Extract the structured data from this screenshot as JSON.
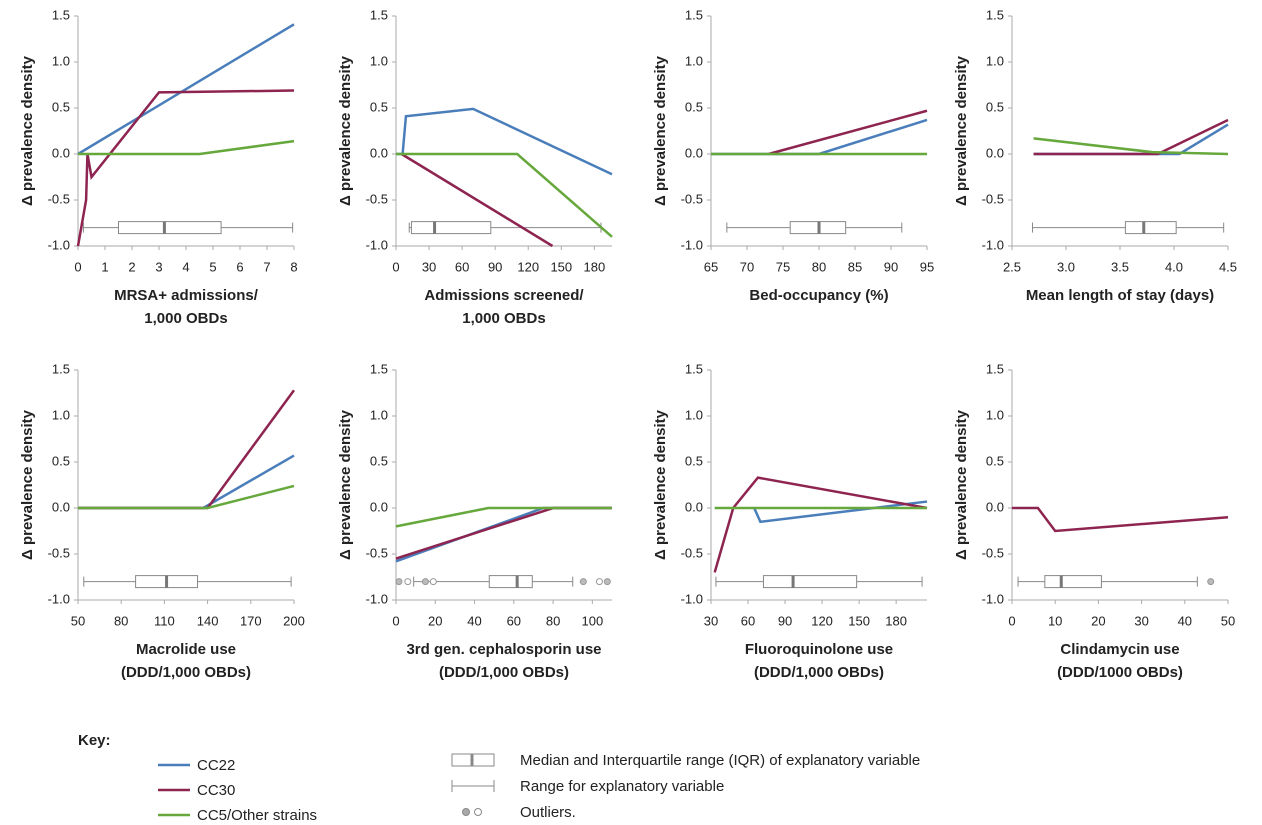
{
  "chart_data": [
    {
      "type": "line",
      "ylabel": "Δ prevalence density",
      "xlabel": [
        "MRSA+ admissions/",
        "1,000 OBDs"
      ],
      "xlim": [
        0,
        8
      ],
      "xticks": [
        0,
        1,
        2,
        3,
        4,
        5,
        6,
        7,
        8
      ],
      "ylim": [
        -1,
        1.5
      ],
      "yticks": [
        {
          "value": -1,
          "label": "-1.0"
        },
        -0.5,
        {
          "value": 0,
          "label": "0.0"
        },
        0.5,
        {
          "value": 1,
          "label": "1.0"
        },
        1.5
      ],
      "series": [
        {
          "name": "CC22",
          "color": "#4a7ebb",
          "x": [
            0,
            8
          ],
          "values": [
            0,
            1.41
          ]
        },
        {
          "name": "CC30",
          "color": "#8e2450",
          "x": [
            0,
            0.3,
            0.35,
            0.5,
            3,
            8
          ],
          "values": [
            -1,
            -0.5,
            0,
            -0.25,
            0.67,
            0.69
          ]
        },
        {
          "name": "CC5/Other strains",
          "color": "#66a83c",
          "x": [
            0,
            4.5,
            8
          ],
          "values": [
            0,
            0,
            0.14
          ]
        }
      ],
      "box": {
        "min": 0.2,
        "q1": 1.5,
        "median": 3.2,
        "q3": 5.3,
        "max": 7.95,
        "outliers": []
      }
    },
    {
      "type": "line",
      "ylabel": "Δ prevalence density",
      "xlabel": [
        "Admissions screened/",
        "1,000 OBDs"
      ],
      "xlim": [
        0,
        196
      ],
      "xticks": [
        0,
        30,
        60,
        90,
        120,
        150,
        180
      ],
      "ylim": [
        -1,
        1.5
      ],
      "yticks": [
        {
          "value": -1,
          "label": "-1.0"
        },
        -0.5,
        {
          "value": 0,
          "label": "0.0"
        },
        0.5,
        {
          "value": 1,
          "label": "1.0"
        },
        1.5
      ],
      "series": [
        {
          "name": "CC22",
          "color": "#4a7ebb",
          "x": [
            0,
            6,
            9,
            70,
            196
          ],
          "values": [
            0,
            0,
            0.41,
            0.49,
            -0.22
          ]
        },
        {
          "name": "CC30",
          "color": "#8e2450",
          "x": [
            5,
            142
          ],
          "values": [
            0,
            -1
          ]
        },
        {
          "name": "CC5/Other strains",
          "color": "#66a83c",
          "x": [
            0,
            110,
            196
          ],
          "values": [
            0,
            0,
            -0.9
          ]
        }
      ],
      "box": {
        "min": 12,
        "q1": 14,
        "median": 35,
        "q3": 86,
        "max": 186,
        "outliers": []
      }
    },
    {
      "type": "line",
      "ylabel": "Δ prevalence density",
      "xlabel": [
        "Bed-occupancy (%)"
      ],
      "xlim": [
        65,
        95
      ],
      "xticks": [
        65,
        70,
        75,
        80,
        85,
        90,
        95
      ],
      "ylim": [
        -1,
        1.5
      ],
      "yticks": [
        {
          "value": -1,
          "label": "-1.0"
        },
        -0.5,
        {
          "value": 0,
          "label": "0.0"
        },
        0.5,
        {
          "value": 1,
          "label": "1.0"
        },
        1.5
      ],
      "series": [
        {
          "name": "CC22",
          "color": "#4a7ebb",
          "x": [
            65,
            80,
            95
          ],
          "values": [
            0,
            0,
            0.37
          ]
        },
        {
          "name": "CC30",
          "color": "#8e2450",
          "x": [
            73,
            95
          ],
          "values": [
            0,
            0.47
          ]
        },
        {
          "name": "CC5/Other strains",
          "color": "#66a83c",
          "x": [
            65,
            95
          ],
          "values": [
            0,
            0
          ]
        }
      ],
      "box": {
        "min": 67.2,
        "q1": 76,
        "median": 80,
        "q3": 83.7,
        "max": 91.5,
        "outliers": []
      }
    },
    {
      "type": "line",
      "ylabel": "Δ prevalence density",
      "xlabel": [
        "Mean length of stay (days)"
      ],
      "xlim": [
        2.5,
        4.5
      ],
      "xticks": [
        2.5,
        {
          "value": 3,
          "label": "3.0"
        },
        3.5,
        {
          "value": 4,
          "label": "4.0"
        },
        4.5
      ],
      "ylim": [
        -1,
        1.5
      ],
      "yticks": [
        {
          "value": -1,
          "label": "-1.0"
        },
        -0.5,
        {
          "value": 0,
          "label": "0.0"
        },
        0.5,
        {
          "value": 1,
          "label": "1.0"
        },
        1.5
      ],
      "series": [
        {
          "name": "CC22",
          "color": "#4a7ebb",
          "x": [
            2.7,
            4.05,
            4.5
          ],
          "values": [
            0,
            0,
            0.32
          ]
        },
        {
          "name": "CC30",
          "color": "#8e2450",
          "x": [
            2.7,
            3.85,
            4.5
          ],
          "values": [
            0,
            0,
            0.37
          ]
        },
        {
          "name": "CC5/Other strains",
          "color": "#66a83c",
          "x": [
            2.7,
            3.8,
            4.5
          ],
          "values": [
            0.17,
            0.02,
            0
          ]
        }
      ],
      "box": {
        "min": 2.69,
        "q1": 3.55,
        "median": 3.72,
        "q3": 4.02,
        "max": 4.46,
        "outliers": []
      }
    },
    {
      "type": "line",
      "ylabel": "Δ prevalence density",
      "xlabel": [
        "Macrolide use",
        "(DDD/1,000 OBDs)"
      ],
      "xlim": [
        50,
        200
      ],
      "xticks": [
        50,
        80,
        110,
        140,
        170,
        200
      ],
      "ylim": [
        -1,
        1.5
      ],
      "yticks": [
        {
          "value": -1,
          "label": "-1.0"
        },
        -0.5,
        {
          "value": 0,
          "label": "0.0"
        },
        0.5,
        {
          "value": 1,
          "label": "1.0"
        },
        1.5
      ],
      "series": [
        {
          "name": "CC22",
          "color": "#4a7ebb",
          "x": [
            50,
            137,
            200
          ],
          "values": [
            0,
            0,
            0.57
          ]
        },
        {
          "name": "CC30",
          "color": "#8e2450",
          "x": [
            50,
            140,
            200
          ],
          "values": [
            0,
            0,
            1.28
          ]
        },
        {
          "name": "CC5/Other strains",
          "color": "#66a83c",
          "x": [
            50,
            140,
            200
          ],
          "values": [
            0,
            0,
            0.24
          ]
        }
      ],
      "box": {
        "min": 54,
        "q1": 90,
        "median": 111.5,
        "q3": 133,
        "max": 198,
        "outliers": []
      }
    },
    {
      "type": "line",
      "ylabel": "Δ prevalence density",
      "xlabel": [
        "3rd gen. cephalosporin use",
        "(DDD/1,000 OBDs)"
      ],
      "xlim": [
        0,
        110
      ],
      "xticks": [
        0,
        20,
        40,
        60,
        80,
        100
      ],
      "ylim": [
        -1,
        1.5
      ],
      "yticks": [
        {
          "value": -1,
          "label": "-1.0"
        },
        -0.5,
        {
          "value": 0,
          "label": "0.0"
        },
        0.5,
        {
          "value": 1,
          "label": "1.0"
        },
        1.5
      ],
      "series": [
        {
          "name": "CC22",
          "color": "#4a7ebb",
          "x": [
            0,
            75,
            110
          ],
          "values": [
            -0.58,
            0,
            0
          ]
        },
        {
          "name": "CC30",
          "color": "#8e2450",
          "x": [
            0,
            80,
            110
          ],
          "values": [
            -0.55,
            0,
            0
          ]
        },
        {
          "name": "CC5/Other strains",
          "color": "#66a83c",
          "x": [
            0,
            47,
            110
          ],
          "values": [
            -0.2,
            0,
            0
          ]
        }
      ],
      "box": {
        "min": 9,
        "q1": 47.5,
        "median": 61.7,
        "q3": 69.4,
        "max": 90,
        "outliers": [
          1.5,
          6,
          15,
          19,
          95.4,
          103.6,
          107.6
        ]
      }
    },
    {
      "type": "line",
      "ylabel": "Δ prevalence density",
      "xlabel": [
        "Fluoroquinolone  use",
        "(DDD/1,000 OBDs)"
      ],
      "xlim": [
        30,
        205
      ],
      "xticks": [
        30,
        60,
        90,
        120,
        150,
        180
      ],
      "ylim": [
        -1,
        1.5
      ],
      "yticks": [
        {
          "value": -1,
          "label": "-1.0"
        },
        -0.5,
        {
          "value": 0,
          "label": "0.0"
        },
        0.5,
        {
          "value": 1,
          "label": "1.0"
        },
        1.5
      ],
      "series": [
        {
          "name": "CC22",
          "color": "#4a7ebb",
          "x": [
            65,
            70,
            205
          ],
          "values": [
            0,
            -0.15,
            0.07
          ]
        },
        {
          "name": "CC30",
          "color": "#8e2450",
          "x": [
            33,
            48,
            68,
            205
          ],
          "values": [
            -0.7,
            0,
            0.33,
            0
          ]
        },
        {
          "name": "CC5/Other strains",
          "color": "#66a83c",
          "x": [
            33,
            205
          ],
          "values": [
            0,
            0
          ]
        }
      ],
      "box": {
        "min": 34,
        "q1": 72.5,
        "median": 96.5,
        "q3": 148,
        "max": 201,
        "outliers": []
      }
    },
    {
      "type": "line",
      "ylabel": "Δ prevalence density",
      "xlabel": [
        "Clindamycin use",
        "(DDD/1000 OBDs)"
      ],
      "xlim": [
        0,
        50
      ],
      "xticks": [
        0,
        10,
        20,
        30,
        40,
        50
      ],
      "ylim": [
        -1,
        1.5
      ],
      "yticks": [
        {
          "value": -1,
          "label": "-1.0"
        },
        -0.5,
        {
          "value": 0,
          "label": "0.0"
        },
        0.5,
        {
          "value": 1,
          "label": "1.0"
        },
        1.5
      ],
      "series": [
        {
          "name": "CC30",
          "color": "#8e2450",
          "x": [
            0,
            6,
            10,
            50
          ],
          "values": [
            0,
            0,
            -0.25,
            -0.1
          ]
        }
      ],
      "box": {
        "min": 1.4,
        "q1": 7.6,
        "median": 11.4,
        "q3": 20.7,
        "max": 42.9,
        "outliers": [
          46
        ]
      }
    }
  ],
  "key": {
    "title": "Key:",
    "items": [
      "Median and Interquartile range (IQR) of explanatory variable",
      "Range for explanatory variable",
      "Outliers."
    ]
  }
}
